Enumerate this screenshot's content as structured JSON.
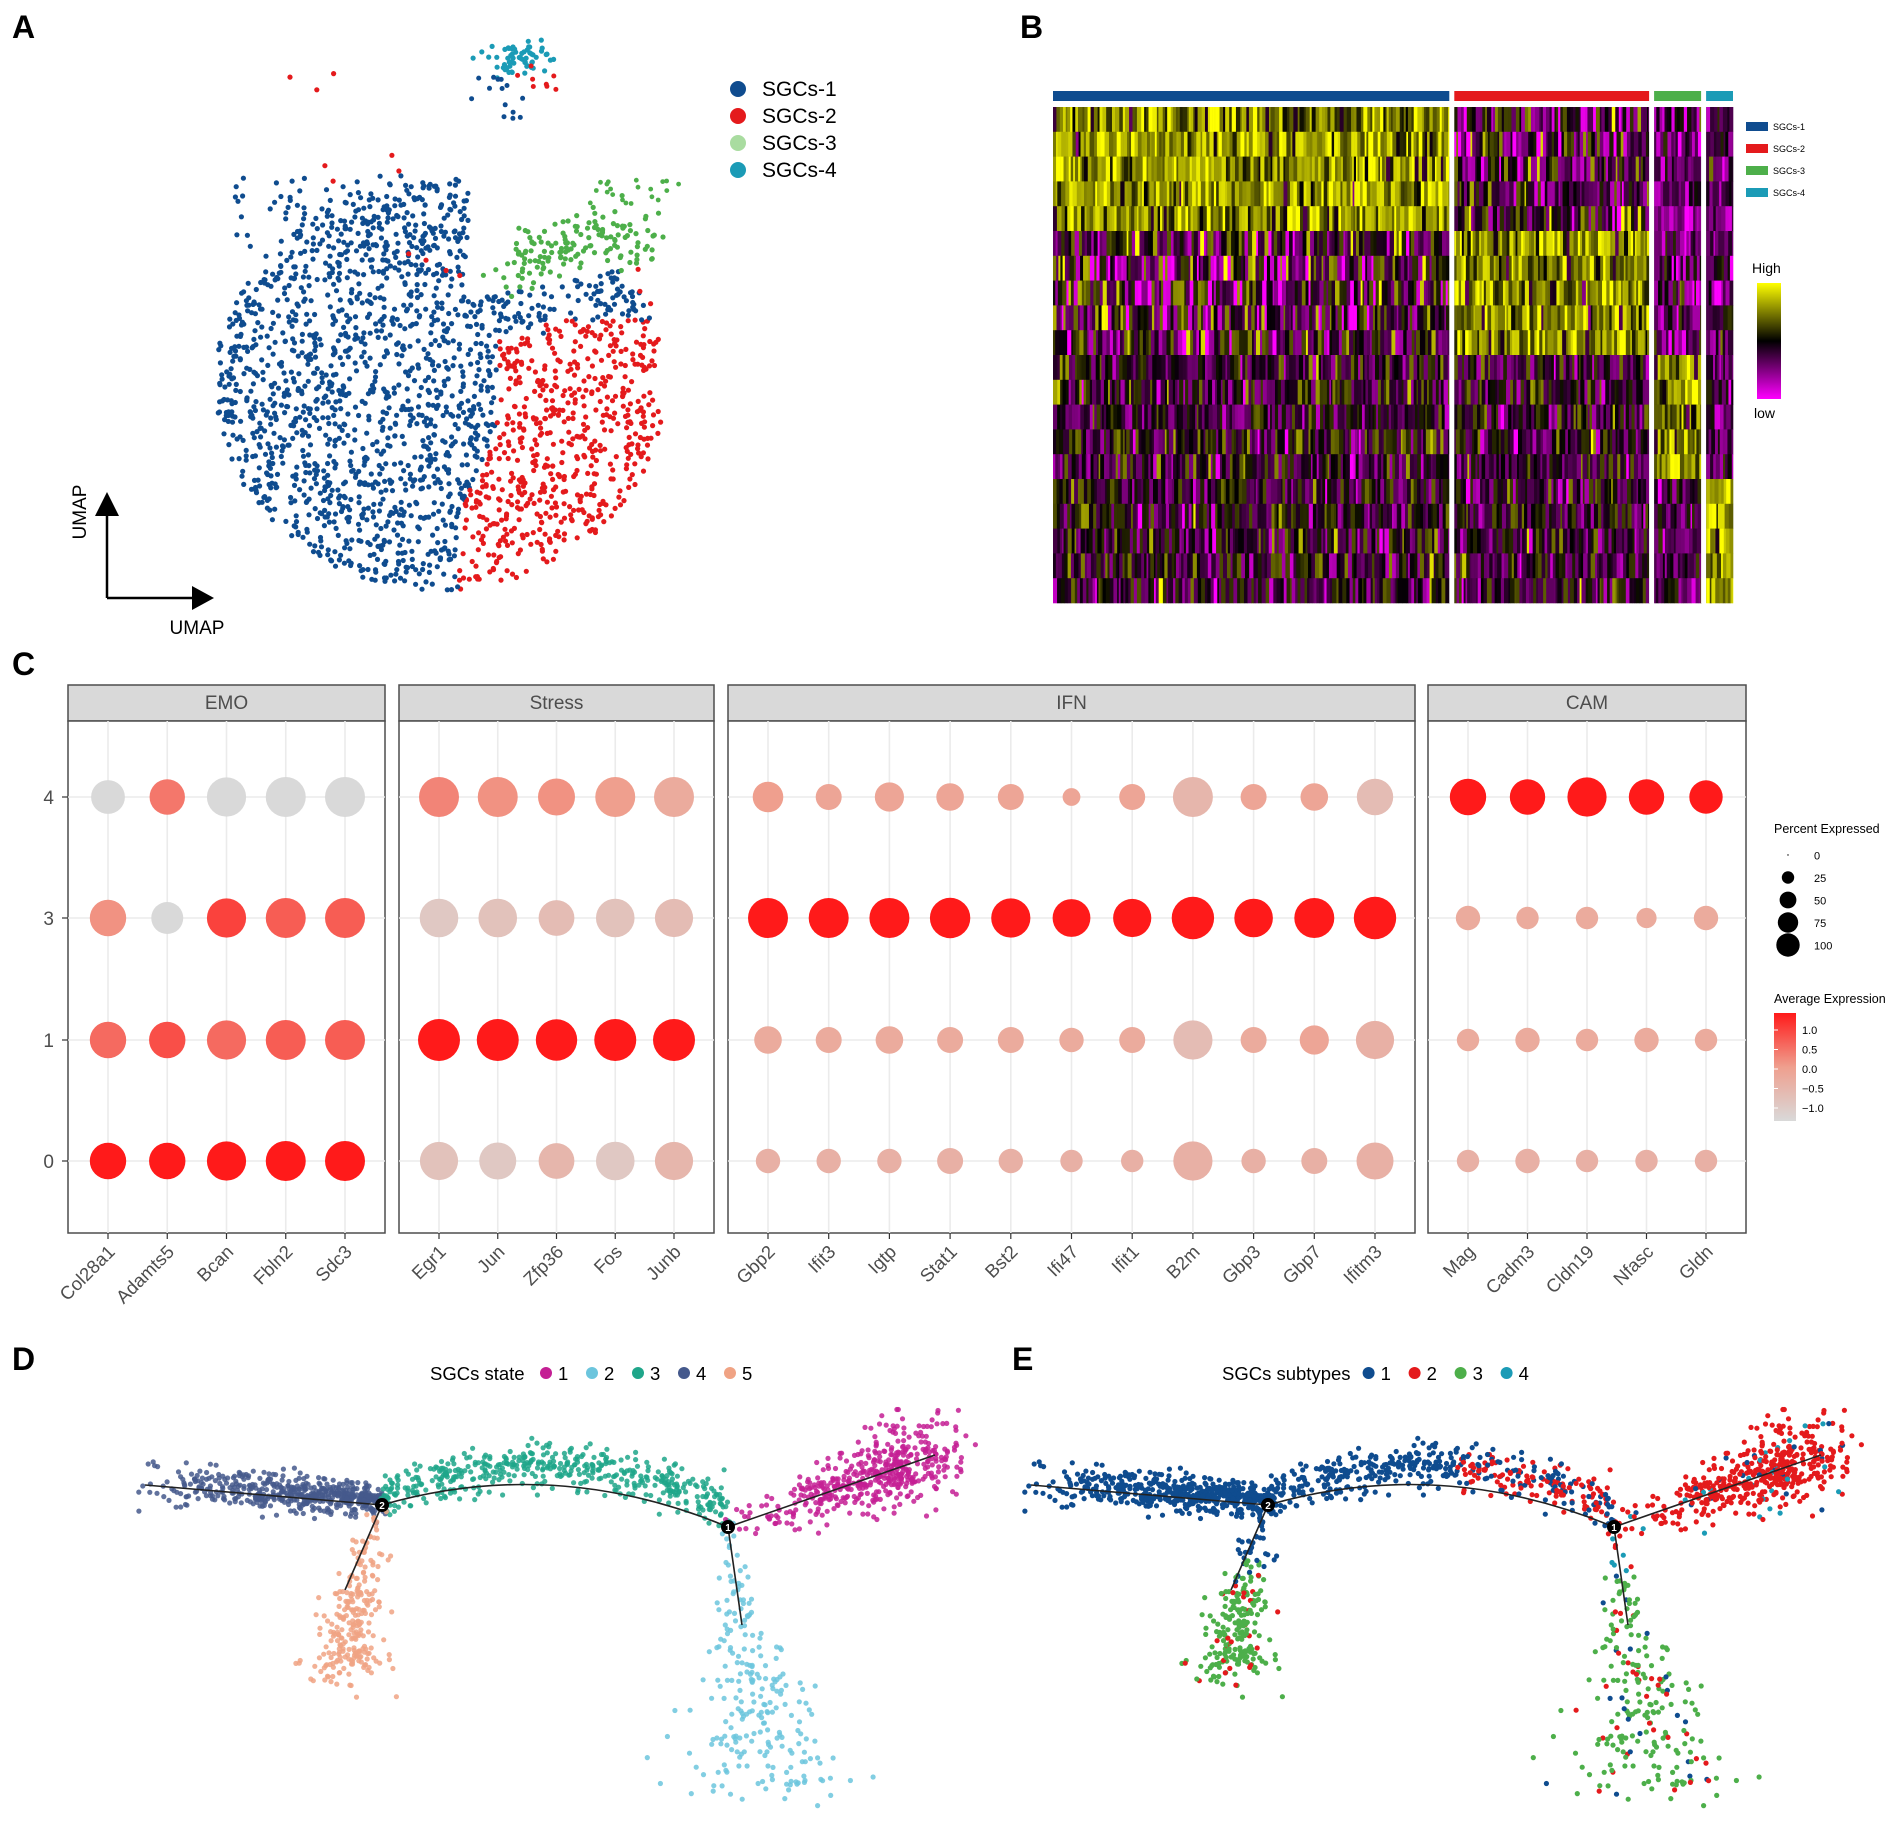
{
  "panel_labels": {
    "a": "A",
    "b": "B",
    "c": "C",
    "d": "D",
    "e": "E"
  },
  "colors": {
    "sgc1": "#0f4c8f",
    "sgc2": "#e41a1c",
    "sgc3": "#4daf4a",
    "sgc3_legend": "#a9dca0",
    "sgc4": "#1b9bb6",
    "state1": "#c41f94",
    "state2": "#6cc5dd",
    "state3": "#1fa68a",
    "state4": "#45598c",
    "state5": "#f0a384",
    "heat_high": "#ffff00",
    "heat_mid": "#000000",
    "heat_low": "#ff00ff"
  },
  "chart_data": [
    {
      "panel": "A",
      "type": "scatter",
      "title": "",
      "xlabel": "UMAP",
      "ylabel": "UMAP",
      "legend_position": "top-right",
      "series": [
        {
          "name": "SGCs-1",
          "approx_count": 2000
        },
        {
          "name": "SGCs-2",
          "approx_count": 1100
        },
        {
          "name": "SGCs-3",
          "approx_count": 150
        },
        {
          "name": "SGCs-4",
          "approx_count": 60
        }
      ]
    },
    {
      "panel": "B",
      "type": "heatmap",
      "title": "",
      "groups": [
        {
          "name": "SGCs-1",
          "relative_width": 0.59
        },
        {
          "name": "SGCs-2",
          "relative_width": 0.29
        },
        {
          "name": "SGCs-3",
          "relative_width": 0.07
        },
        {
          "name": "SGCs-4",
          "relative_width": 0.04
        }
      ],
      "gene_blocks": [
        {
          "high_in": "SGCs-1",
          "rows": 5
        },
        {
          "high_in": "SGCs-2",
          "rows": 5
        },
        {
          "high_in": "SGCs-3",
          "rows": 5
        },
        {
          "high_in": "SGCs-4",
          "rows": 5
        }
      ],
      "scale_labels": {
        "high": "High",
        "low": "low"
      }
    },
    {
      "panel": "C",
      "type": "scatter",
      "subtype": "dotplot",
      "title": "",
      "xlabel": "",
      "ylabel": "",
      "y_categories": [
        "0",
        "1",
        "3",
        "4"
      ],
      "facets": [
        {
          "name": "EMO",
          "genes": [
            "Col28a1",
            "Adamts5",
            "Bcan",
            "Fbln2",
            "Sdc3"
          ]
        },
        {
          "name": "Stress",
          "genes": [
            "Egr1",
            "Jun",
            "Zfp36",
            "Fos",
            "Junb"
          ]
        },
        {
          "name": "IFN",
          "genes": [
            "Gbp2",
            "Ifit3",
            "Igtp",
            "Stat1",
            "Bst2",
            "Ifi47",
            "Ifit1",
            "B2m",
            "Gbp3",
            "Gbp7",
            "Ifitm3"
          ]
        },
        {
          "name": "CAM",
          "genes": [
            "Mag",
            "Cadm3",
            "Cldn19",
            "Nfasc",
            "Gldn"
          ]
        }
      ],
      "percent_expressed": {
        "0": [
          72,
          72,
          85,
          88,
          88,
          80,
          75,
          70,
          82,
          80,
          30,
          30,
          30,
          35,
          30,
          25,
          25,
          85,
          30,
          35,
          75,
          25,
          30,
          25,
          25,
          25
        ],
        "1": [
          72,
          72,
          85,
          88,
          88,
          98,
          98,
          95,
          98,
          98,
          40,
          35,
          40,
          35,
          35,
          30,
          35,
          85,
          35,
          45,
          80,
          25,
          30,
          25,
          30,
          25
        ],
        "3": [
          72,
          55,
          85,
          88,
          88,
          82,
          82,
          70,
          82,
          80,
          88,
          88,
          88,
          90,
          85,
          78,
          80,
          100,
          82,
          88,
          100,
          30,
          25,
          25,
          20,
          30
        ],
        "4": [
          62,
          68,
          85,
          88,
          88,
          88,
          88,
          75,
          88,
          88,
          50,
          35,
          45,
          40,
          35,
          15,
          35,
          88,
          35,
          40,
          72,
          72,
          68,
          85,
          68,
          60
        ]
      },
      "average_expression": {
        "0": [
          1.1,
          1.1,
          1.0,
          1.0,
          1.0,
          -0.6,
          -0.7,
          -0.4,
          -0.7,
          -0.4,
          -0.3,
          -0.3,
          -0.3,
          -0.3,
          -0.3,
          -0.3,
          -0.3,
          -0.3,
          -0.3,
          -0.3,
          -0.3,
          -0.3,
          -0.3,
          -0.3,
          -0.3,
          -0.3
        ],
        "1": [
          0.4,
          0.6,
          0.4,
          0.5,
          0.5,
          1.5,
          1.5,
          1.5,
          1.5,
          1.5,
          -0.2,
          -0.2,
          -0.2,
          -0.2,
          -0.2,
          -0.2,
          -0.2,
          -0.5,
          -0.2,
          -0.1,
          -0.3,
          -0.2,
          -0.2,
          -0.2,
          -0.2,
          -0.2
        ],
        "3": [
          0.1,
          -1.1,
          0.7,
          0.5,
          0.5,
          -0.7,
          -0.6,
          -0.5,
          -0.6,
          -0.5,
          1.5,
          1.5,
          1.5,
          1.5,
          1.5,
          1.5,
          1.5,
          1.5,
          1.5,
          1.5,
          1.5,
          -0.2,
          -0.2,
          -0.2,
          -0.2,
          -0.2
        ],
        "4": [
          -1.0,
          0.3,
          -1.2,
          -1.2,
          -1.2,
          0.2,
          0.1,
          0.1,
          0.0,
          -0.2,
          0.0,
          -0.1,
          -0.1,
          -0.1,
          -0.1,
          -0.1,
          -0.1,
          -0.4,
          -0.1,
          -0.1,
          -0.5,
          1.5,
          1.5,
          1.5,
          1.5,
          1.5
        ]
      },
      "size_legend": {
        "title": "Percent Expressed",
        "values": [
          0,
          25,
          50,
          75,
          100
        ],
        "labels": [
          "0",
          "25",
          "50",
          "75",
          "100"
        ]
      },
      "color_legend": {
        "title": "Average Expression",
        "range": [
          -1.0,
          1.0
        ],
        "labels": [
          "1.0",
          "0.5",
          "0.0",
          "−0.5",
          "−1.0"
        ],
        "ticks": [
          1.0,
          0.5,
          0.0,
          -0.5,
          -1.0
        ]
      }
    },
    {
      "panel": "D",
      "type": "scatter",
      "subtype": "trajectory",
      "legend_title": "SGCs state",
      "legend_position": "top",
      "categories": [
        "1",
        "2",
        "3",
        "4",
        "5"
      ],
      "branch_points": [
        "1",
        "2"
      ]
    },
    {
      "panel": "E",
      "type": "scatter",
      "subtype": "trajectory",
      "legend_title": "SGCs subtypes",
      "legend_position": "top",
      "categories": [
        "1",
        "2",
        "3",
        "4"
      ],
      "branch_points": [
        "1",
        "2"
      ]
    }
  ]
}
